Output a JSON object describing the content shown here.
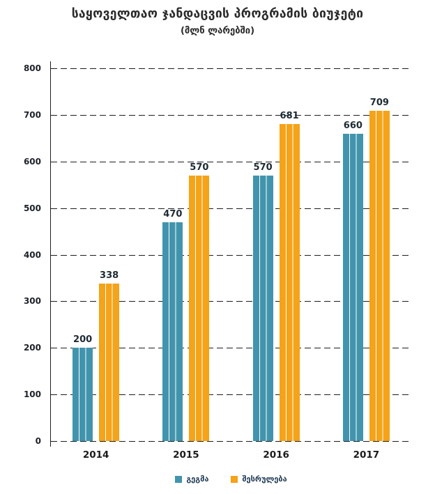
{
  "header": {
    "title": "საყოველთაო ჯანდაცვის პროგრამის ბიუჯეტი",
    "subtitle": "(მლნ ლარებში)"
  },
  "chart_data": {
    "type": "bar",
    "title": "საყოველთაო ჯანდაცვის პროგრამის ბიუჯეტი",
    "subtitle": "(მლნ ლარებში)",
    "categories": [
      "2014",
      "2015",
      "2016",
      "2017"
    ],
    "series": [
      {
        "name": "გეგმა",
        "color": "#4294ad",
        "values": [
          200,
          470,
          570,
          660
        ]
      },
      {
        "name": "შესრულება",
        "color": "#f5a318",
        "values": [
          338,
          570,
          681,
          709
        ]
      }
    ],
    "yticks": [
      0,
      100,
      200,
      300,
      400,
      500,
      600,
      700,
      800
    ],
    "ylim": [
      0,
      800
    ],
    "ylabel": "",
    "xlabel": "",
    "grid": "horizontal-dashed",
    "gridline_color": "#1c1c1c",
    "axis_color": "#1c1c1c",
    "bar_stripe_color": "#ffffff",
    "value_labels": true,
    "legend_position": "bottom"
  }
}
